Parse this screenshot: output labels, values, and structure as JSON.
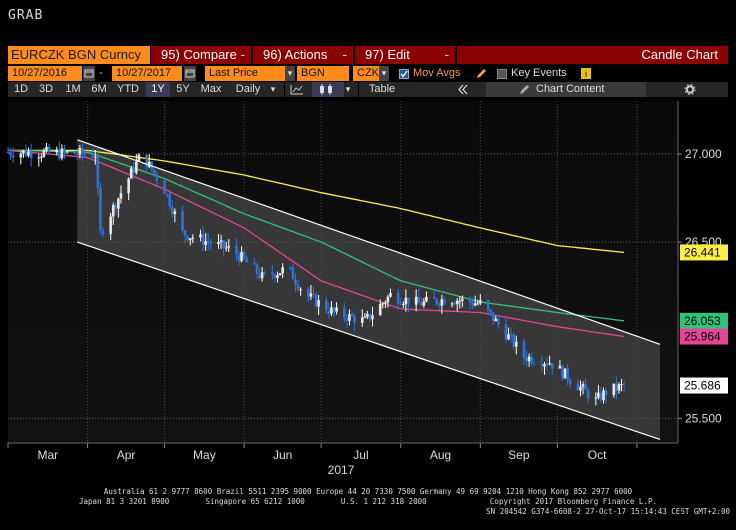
{
  "app": {
    "title": "GRAB"
  },
  "toolbar": {
    "security": "EURCZK BGN Curncy",
    "compare": "95) Compare",
    "actions": "96) Actions",
    "edit": "97) Edit",
    "chart_type": "Candle Chart",
    "dash": "-",
    "start_date": "10/27/2016",
    "end_date": "10/27/2017",
    "price_field": "Last Price",
    "source": "BGN",
    "currency": "CZK",
    "mov_avgs": "Mov Avgs",
    "key_events": "Key Events",
    "periods": [
      "1D",
      "3D",
      "1M",
      "6M",
      "YTD",
      "1Y",
      "5Y",
      "Max"
    ],
    "selected_period": "1Y",
    "frequency": "Daily",
    "table": "Table",
    "chart_content": "Chart Content",
    "dropdown_glyph": "▾"
  },
  "colors": {
    "ma1": "#ffee44",
    "ma2": "#2ec27e",
    "ma3": "#e64497",
    "up": "#ffffff",
    "down": "#2a73d9",
    "channel": "#ffffff",
    "box_last": "#ffffff",
    "box_ma_yellow": "#ffee44",
    "box_ma_green": "#2ec27e",
    "box_ma_pink": "#e64497"
  },
  "chart_data": {
    "type": "candlestick",
    "title": "",
    "x_tick_labels": [
      "Mar",
      "Apr",
      "May",
      "Jun",
      "Jul",
      "Aug",
      "Sep",
      "Oct"
    ],
    "x_year_label": "2017",
    "y_tick_labels": [
      "27.000",
      "26.500",
      "25.500"
    ],
    "ylim": [
      25.36,
      27.3
    ],
    "grid": true,
    "series": [
      {
        "name": "",
        "color": "#ffee44",
        "points": [
          [
            "2017-03-01",
            27.02
          ],
          [
            "2017-04-01",
            27.02
          ],
          [
            "2017-05-01",
            26.96
          ],
          [
            "2017-06-01",
            26.88
          ],
          [
            "2017-07-01",
            26.78
          ],
          [
            "2017-08-01",
            26.69
          ],
          [
            "2017-09-01",
            26.58
          ],
          [
            "2017-10-01",
            26.48
          ],
          [
            "2017-10-27",
            26.441
          ]
        ]
      },
      {
        "name": "",
        "color": "#2ec27e",
        "points": [
          [
            "2017-03-01",
            27.02
          ],
          [
            "2017-04-01",
            27.01
          ],
          [
            "2017-05-01",
            26.86
          ],
          [
            "2017-06-01",
            26.66
          ],
          [
            "2017-07-01",
            26.5
          ],
          [
            "2017-08-01",
            26.28
          ],
          [
            "2017-09-01",
            26.16
          ],
          [
            "2017-10-01",
            26.1
          ],
          [
            "2017-10-27",
            26.053
          ]
        ]
      },
      {
        "name": "",
        "color": "#e64497",
        "points": [
          [
            "2017-03-01",
            27.02
          ],
          [
            "2017-04-01",
            26.98
          ],
          [
            "2017-05-01",
            26.8
          ],
          [
            "2017-06-01",
            26.58
          ],
          [
            "2017-07-01",
            26.28
          ],
          [
            "2017-08-01",
            26.12
          ],
          [
            "2017-09-01",
            26.1
          ],
          [
            "2017-10-01",
            26.02
          ],
          [
            "2017-10-27",
            25.964
          ]
        ]
      }
    ],
    "price_path": [
      [
        "2017-03-01",
        27.01
      ],
      [
        "2017-04-04",
        27.0
      ],
      [
        "2017-04-06",
        26.55
      ],
      [
        "2017-04-14",
        26.78
      ],
      [
        "2017-04-22",
        27.0
      ],
      [
        "2017-05-01",
        26.8
      ],
      [
        "2017-05-08",
        26.55
      ],
      [
        "2017-05-18",
        26.5
      ],
      [
        "2017-05-28",
        26.45
      ],
      [
        "2017-06-08",
        26.3
      ],
      [
        "2017-06-18",
        26.35
      ],
      [
        "2017-06-25",
        26.2
      ],
      [
        "2017-07-06",
        26.1
      ],
      [
        "2017-07-18",
        26.05
      ],
      [
        "2017-07-28",
        26.2
      ],
      [
        "2017-08-08",
        26.15
      ],
      [
        "2017-08-20",
        26.18
      ],
      [
        "2017-09-01",
        26.15
      ],
      [
        "2017-09-10",
        26.0
      ],
      [
        "2017-09-18",
        25.85
      ],
      [
        "2017-09-28",
        25.82
      ],
      [
        "2017-10-08",
        25.7
      ],
      [
        "2017-10-16",
        25.6
      ],
      [
        "2017-10-20",
        25.65
      ],
      [
        "2017-10-27",
        25.686
      ]
    ],
    "channel": {
      "upper": [
        [
          "2017-03-28",
          27.08
        ],
        [
          "2017-11-10",
          25.92
        ]
      ],
      "lower": [
        [
          "2017-03-28",
          26.5
        ],
        [
          "2017-11-10",
          25.38
        ]
      ]
    },
    "last_price_labels": [
      {
        "label": "26.441",
        "value": 26.441,
        "color_key": "box_ma_yellow"
      },
      {
        "label": "26.053",
        "value": 26.053,
        "color_key": "box_ma_green"
      },
      {
        "label": "25.964",
        "value": 25.964,
        "color_key": "box_ma_pink"
      },
      {
        "label": "25.686",
        "value": 25.686,
        "color_key": "box_last"
      }
    ]
  },
  "footer": {
    "line1": "Australia 61 2 9777 8600 Brazil 5511 2395 9000 Europe 44 20 7330 7500 Germany 49 69 9204 1210 Hong Kong 852 2977 6000",
    "line2": "Japan 81 3 3201 8900        Singapore 65 6212 1000        U.S. 1 212 318 2000              Copyright 2017 Bloomberg Finance L.P.",
    "line3": "SN 204542 G374-6608-2 27-Oct-17 15:14:43 CEST GMT+2:00"
  }
}
